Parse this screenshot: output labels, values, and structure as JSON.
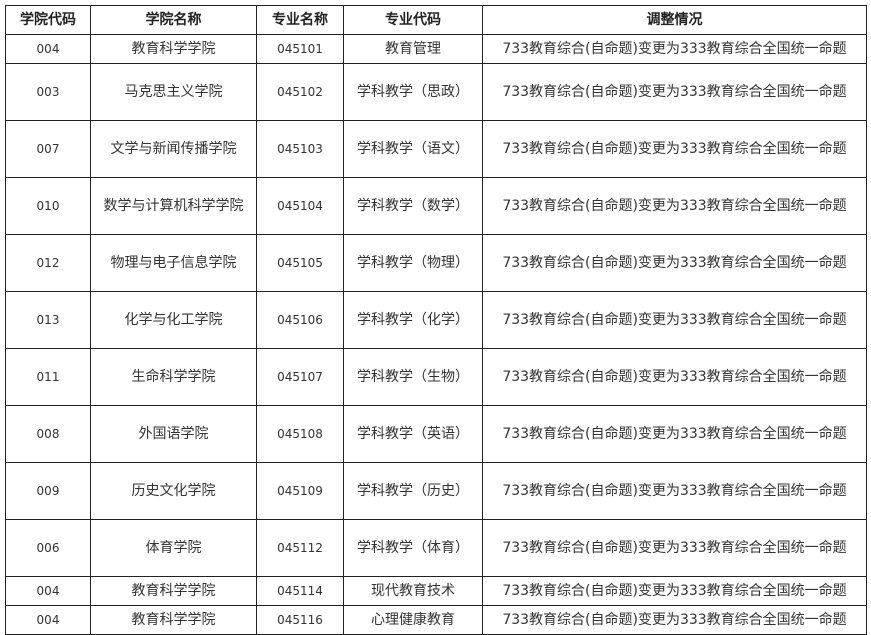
{
  "headers": [
    "学院代码",
    "学院名称",
    "专业名称",
    "专业代码",
    "调整情况"
  ],
  "rows": [
    {
      "college_code": "004",
      "college_name": "教育科学学院",
      "major_code": "045101",
      "major_name": "教育管理",
      "adjustment": "733教育综合(自命题)变更为333教育综合全国统一命题"
    },
    {
      "college_code": "003",
      "college_name": "马克思主义学院",
      "major_code": "045102",
      "major_name": "学科教学（思政）",
      "adjustment": "733教育综合(自命题)变更为333教育综合全国统一命题"
    },
    {
      "college_code": "007",
      "college_name": "文学与新闻传播学院",
      "major_code": "045103",
      "major_name": "学科教学（语文）",
      "adjustment": "733教育综合(自命题)变更为333教育综合全国统一命题"
    },
    {
      "college_code": "010",
      "college_name": "数学与计算机科学学院",
      "major_code": "045104",
      "major_name": "学科教学（数学）",
      "adjustment": "733教育综合(自命题)变更为333教育综合全国统一命题"
    },
    {
      "college_code": "012",
      "college_name": "物理与电子信息学院",
      "major_code": "045105",
      "major_name": "学科教学（物理）",
      "adjustment": "733教育综合(自命题)变更为333教育综合全国统一命题"
    },
    {
      "college_code": "013",
      "college_name": "化学与化工学院",
      "major_code": "045106",
      "major_name": "学科教学（化学）",
      "adjustment": "733教育综合(自命题)变更为333教育综合全国统一命题"
    },
    {
      "college_code": "011",
      "college_name": "生命科学学院",
      "major_code": "045107",
      "major_name": "学科教学（生物）",
      "adjustment": "733教育综合(自命题)变更为333教育综合全国统一命题"
    },
    {
      "college_code": "008",
      "college_name": "外国语学院",
      "major_code": "045108",
      "major_name": "学科教学（英语）",
      "adjustment": "733教育综合(自命题)变更为333教育综合全国统一命题"
    },
    {
      "college_code": "009",
      "college_name": "历史文化学院",
      "major_code": "045109",
      "major_name": "学科教学（历史）",
      "adjustment": "733教育综合(自命题)变更为333教育综合全国统一命题"
    },
    {
      "college_code": "006",
      "college_name": "体育学院",
      "major_code": "045112",
      "major_name": "学科教学（体育）",
      "adjustment": "733教育综合(自命题)变更为333教育综合全国统一命题"
    },
    {
      "college_code": "004",
      "college_name": "教育科学学院",
      "major_code": "045114",
      "major_name": "现代教育技术",
      "adjustment": "733教育综合(自命题)变更为333教育综合全国统一命题"
    },
    {
      "college_code": "004",
      "college_name": "教育科学学院",
      "major_code": "045116",
      "major_name": "心理健康教育",
      "adjustment": "733教育综合(自命题)变更为333教育综合全国统一命题"
    }
  ]
}
